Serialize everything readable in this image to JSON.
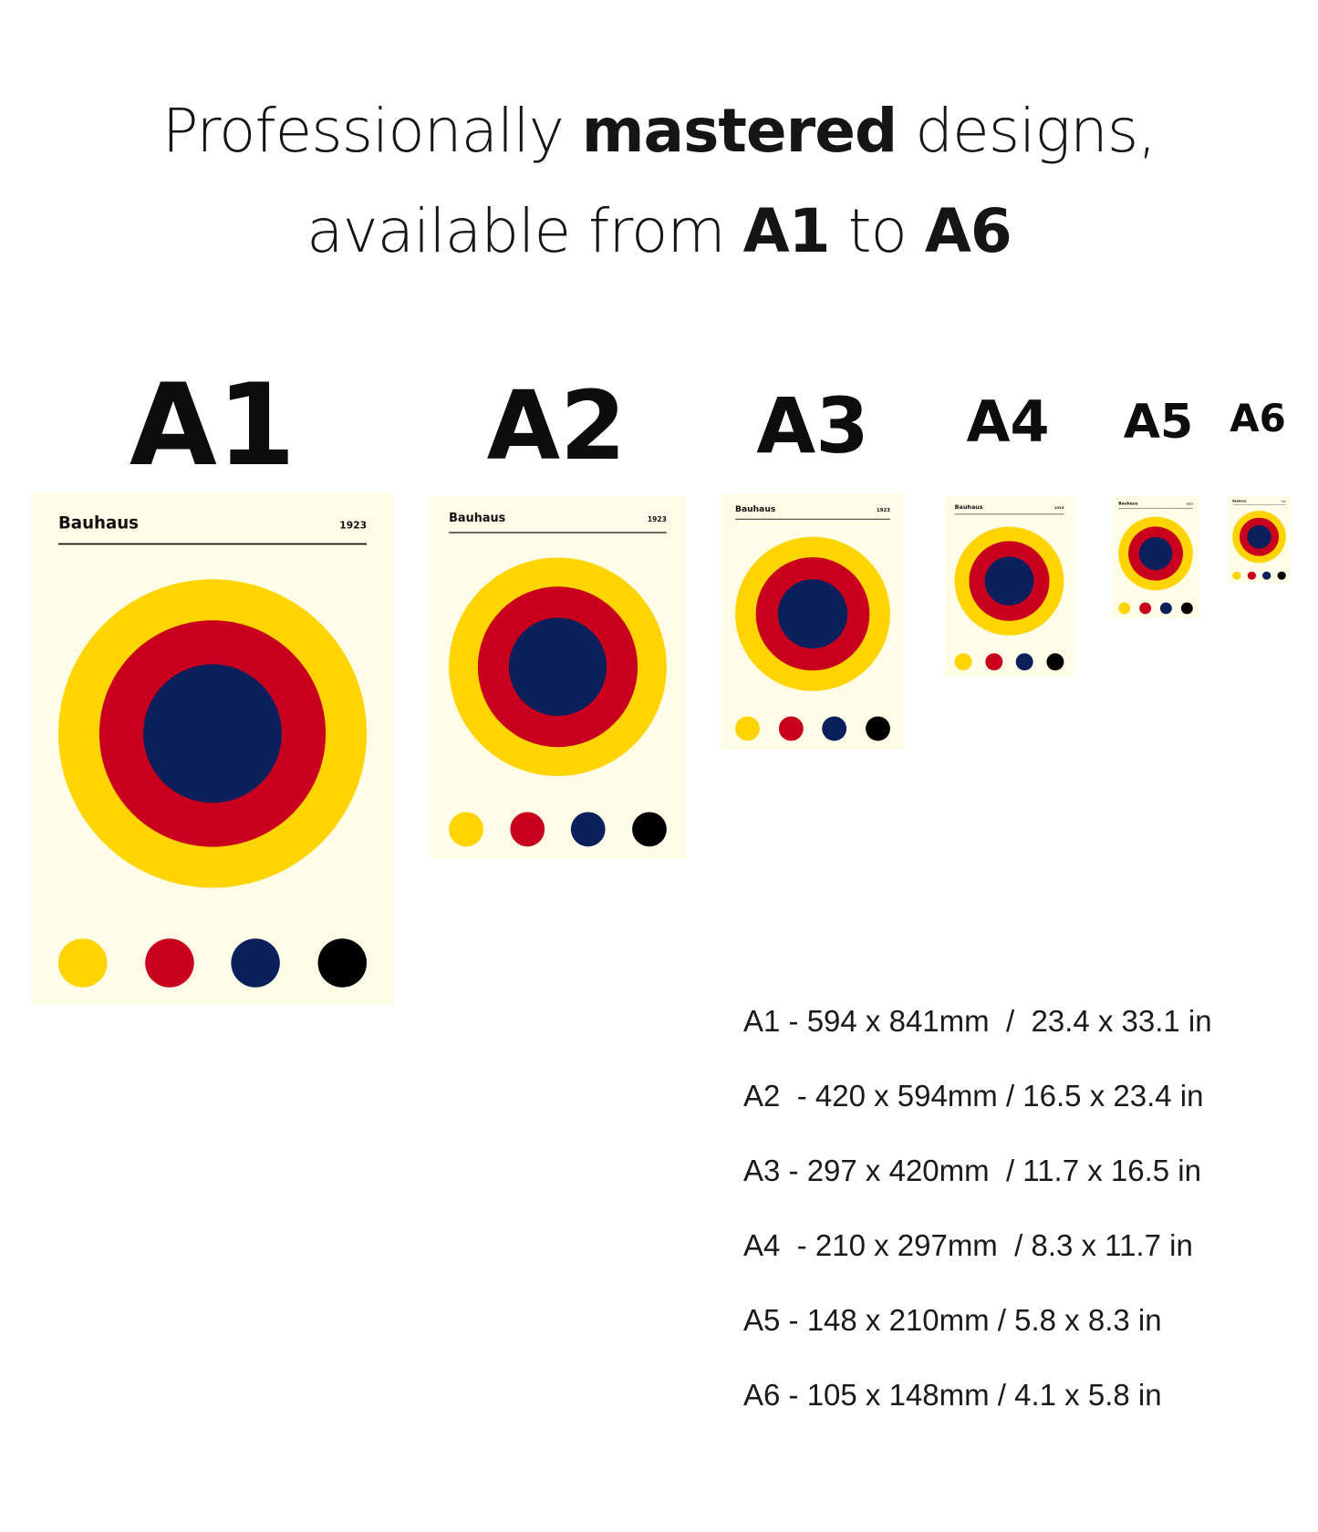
{
  "headline": {
    "line1_a": "Professionally ",
    "line1_bold": "mastered",
    "line1_b": " designs,",
    "line2_a": "available from ",
    "line2_bold1": "A1",
    "line2_b": " to ",
    "line2_bold2": "A6"
  },
  "sizes": [
    {
      "label": "A1",
      "spec": "A1 - 594 x 841mm  /  23.4 x 33.1 in"
    },
    {
      "label": "A2",
      "spec": "A2  - 420 x 594mm / 16.5 x 23.4 in"
    },
    {
      "label": "A3",
      "spec": "A3 - 297 x 420mm  / 11.7 x 16.5 in"
    },
    {
      "label": "A4",
      "spec": "A4  - 210 x 297mm  / 8.3 x 11.7 in"
    },
    {
      "label": "A5",
      "spec": "A5 - 148 x 210mm / 5.8 x 8.3 in"
    },
    {
      "label": "A6",
      "spec": "A6 - 105 x 148mm / 4.1 x 5.8 in"
    }
  ],
  "poster": {
    "title": "Bauhaus",
    "year": "1923",
    "colors": {
      "background": "#fffde8",
      "yellow": "#ffd400",
      "red": "#c8001e",
      "blue": "#0a1f5c",
      "black": "#000000"
    }
  }
}
